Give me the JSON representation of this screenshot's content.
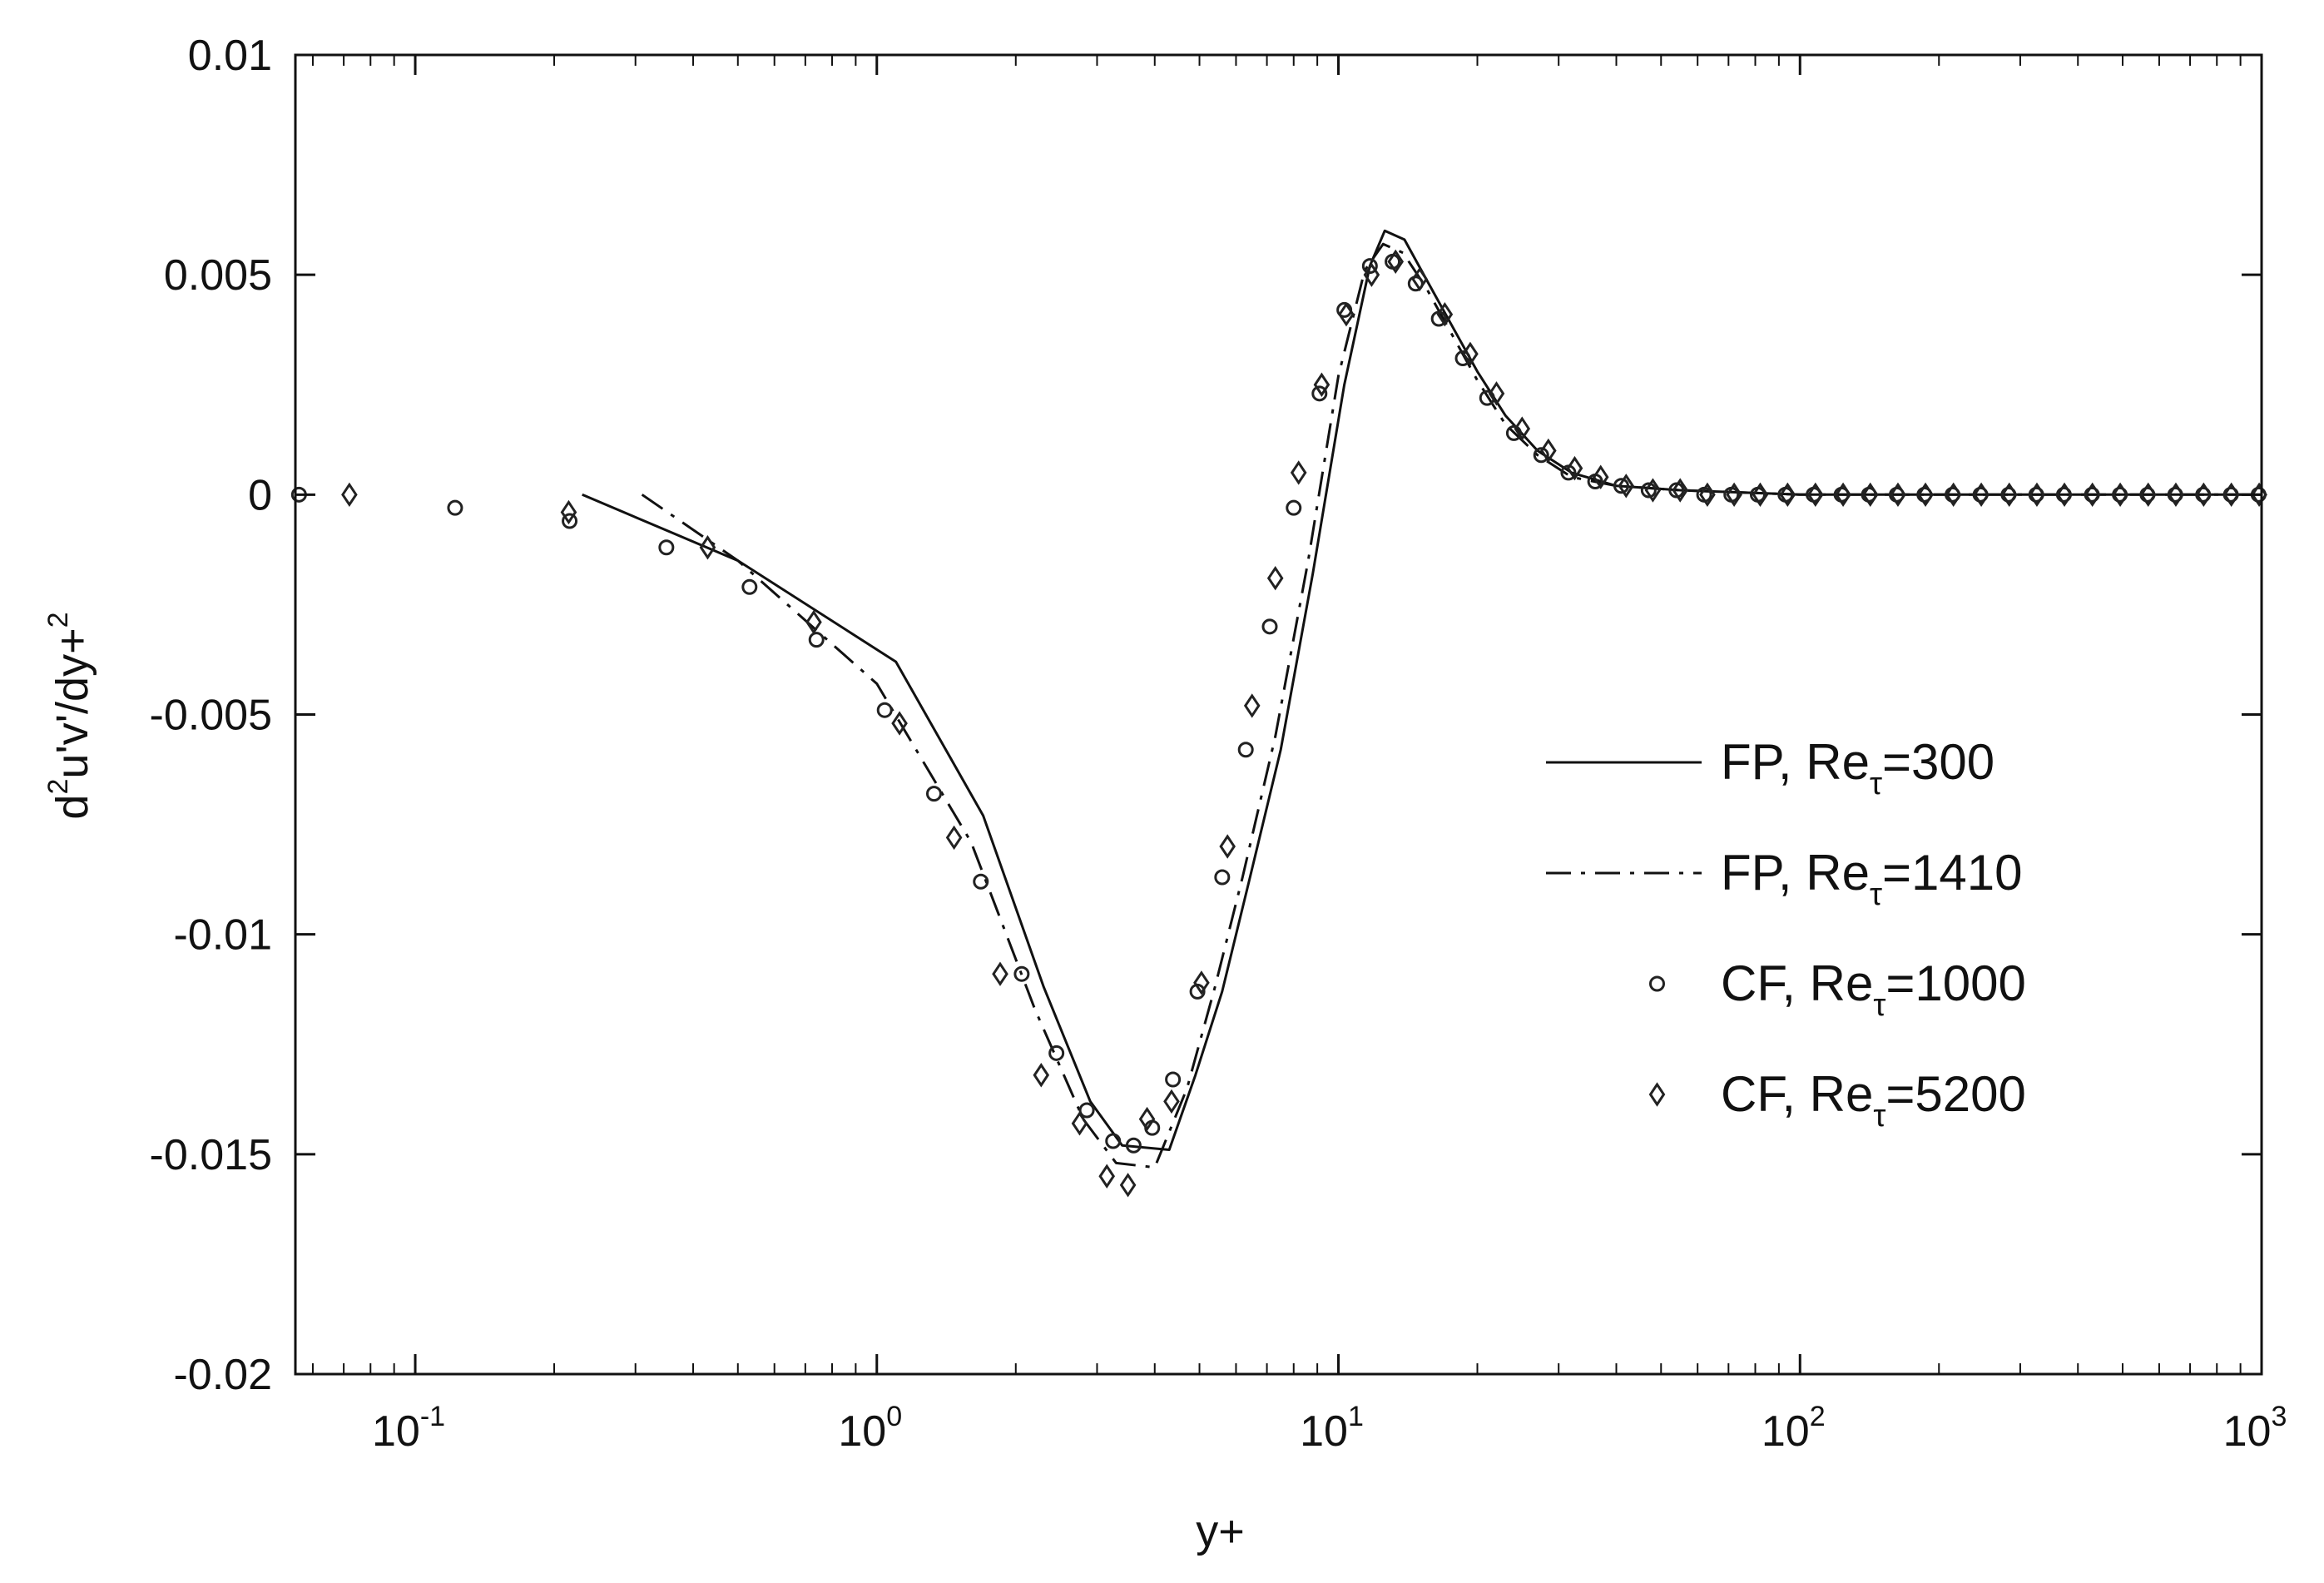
{
  "chart_data": {
    "type": "line",
    "title": "",
    "xlabel": "y+",
    "ylabel": "d2u'v'/dy+2",
    "xscale": "log",
    "xlim": [
      0.055,
      1000
    ],
    "ylim": [
      -0.02,
      0.01
    ],
    "grid": false,
    "legend_position": "center-right",
    "x_ticks": [
      0.1,
      1,
      10,
      100,
      1000
    ],
    "x_tick_labels": [
      {
        "base": "10",
        "exp": "-1"
      },
      {
        "base": "10",
        "exp": "0"
      },
      {
        "base": "10",
        "exp": "1"
      },
      {
        "base": "10",
        "exp": "2"
      },
      {
        "base": "10",
        "exp": "3"
      }
    ],
    "y_ticks": [
      0.01,
      0.005,
      0,
      -0.005,
      -0.01,
      -0.015,
      -0.02
    ],
    "y_tick_labels": [
      "0.01",
      "0.005",
      "0",
      "-0.005",
      "-0.01",
      "-0.015",
      "-0.02"
    ],
    "series": [
      {
        "name": "FP, Re_τ=300",
        "label_main": "FP, Re",
        "label_sub": "τ",
        "label_tail": "=300",
        "style": "solid",
        "x": [
          0.23,
          0.5,
          1.1,
          1.7,
          2.3,
          2.9,
          3.4,
          4.3,
          4.9,
          5.6,
          6.4,
          7.5,
          8.8,
          10.3,
          11.7,
          12.6,
          13.9,
          15.5,
          17.5,
          20,
          23,
          27,
          32,
          40,
          55,
          100,
          200,
          500,
          1000
        ],
        "y": [
          0.0,
          -0.0015,
          -0.0038,
          -0.0073,
          -0.0112,
          -0.0138,
          -0.0148,
          -0.0149,
          -0.0132,
          -0.0113,
          -0.0088,
          -0.0058,
          -0.0018,
          0.0025,
          0.0052,
          0.006,
          0.0058,
          0.0049,
          0.0039,
          0.0028,
          0.0018,
          0.001,
          0.0005,
          0.0002,
          0.0001,
          0.0,
          0.0,
          0.0,
          0.0
        ]
      },
      {
        "name": "FP, Re_τ=1410",
        "label_main": "FP, Re",
        "label_sub": "τ",
        "label_tail": "=1410",
        "style": "dashdot",
        "x": [
          0.31,
          0.5,
          1.0,
          1.6,
          2.2,
          2.8,
          3.3,
          4.0,
          4.7,
          5.4,
          6.2,
          7.3,
          8.6,
          10.0,
          11.4,
          12.5,
          13.8,
          15.5,
          17.5,
          20,
          23,
          27,
          32,
          40,
          55,
          100,
          200,
          500,
          1000
        ],
        "y": [
          0.0,
          -0.0015,
          -0.0043,
          -0.0079,
          -0.0117,
          -0.0142,
          -0.0152,
          -0.0153,
          -0.0135,
          -0.0112,
          -0.0087,
          -0.0055,
          -0.0015,
          0.0027,
          0.0051,
          0.0057,
          0.0055,
          0.0047,
          0.0037,
          0.0026,
          0.0016,
          0.0009,
          0.0004,
          0.0002,
          0.0001,
          0.0,
          0.0,
          0.0,
          0.0
        ]
      },
      {
        "name": "CF, Re_τ=1000",
        "label_main": "CF, Re",
        "label_sub": "τ",
        "label_tail": "=1000",
        "style": "circle",
        "x": [
          0.056,
          0.122,
          0.216,
          0.35,
          0.53,
          0.74,
          1.04,
          1.33,
          1.68,
          2.06,
          2.45,
          2.85,
          3.25,
          3.6,
          3.95,
          4.38,
          4.95,
          5.6,
          6.3,
          7.1,
          8.0,
          9.1,
          10.3,
          11.7,
          13.1,
          14.7,
          16.5,
          18.6,
          21,
          24,
          27.5,
          31.5,
          36,
          41,
          47,
          54,
          62,
          71,
          81,
          93,
          107,
          123,
          141,
          162,
          186,
          214,
          246,
          283,
          325,
          373,
          429,
          493,
          566,
          650,
          747,
          858,
          985
        ],
        "y": [
          0.0,
          -0.0003,
          -0.0006,
          -0.0012,
          -0.0021,
          -0.0033,
          -0.0049,
          -0.0068,
          -0.0088,
          -0.0109,
          -0.0127,
          -0.014,
          -0.0147,
          -0.0148,
          -0.0144,
          -0.0133,
          -0.0113,
          -0.0087,
          -0.0058,
          -0.003,
          -0.0003,
          0.0023,
          0.0042,
          0.0052,
          0.0053,
          0.0048,
          0.004,
          0.0031,
          0.0022,
          0.0014,
          0.0009,
          0.0005,
          0.0003,
          0.0002,
          0.0001,
          0.0001,
          0.0,
          0.0,
          0.0,
          0.0,
          0.0,
          0.0,
          0.0,
          0.0,
          0.0,
          0.0,
          0.0,
          0.0,
          0.0,
          0.0,
          0.0,
          0.0,
          0.0,
          0.0,
          0.0,
          0.0,
          0.0
        ]
      },
      {
        "name": "CF, Re_τ=5200",
        "label_main": "CF, Re",
        "label_sub": "τ",
        "label_tail": "=5200",
        "style": "diamond",
        "x": [
          0.072,
          0.215,
          0.43,
          0.73,
          1.12,
          1.47,
          1.85,
          2.27,
          2.75,
          3.15,
          3.5,
          3.85,
          4.35,
          5.05,
          5.75,
          6.5,
          7.3,
          8.2,
          9.2,
          10.4,
          11.8,
          13.3,
          15,
          17,
          19.3,
          22,
          25,
          28.5,
          32.5,
          37,
          42,
          48,
          55,
          63,
          72,
          82,
          94,
          108,
          124,
          142,
          163,
          187,
          215,
          247,
          284,
          326,
          374,
          430,
          494,
          568,
          652,
          749,
          860,
          988
        ],
        "y": [
          0.0,
          -0.0004,
          -0.0012,
          -0.0029,
          -0.0052,
          -0.0078,
          -0.0109,
          -0.0132,
          -0.0143,
          -0.0155,
          -0.0157,
          -0.0142,
          -0.0138,
          -0.0111,
          -0.008,
          -0.0048,
          -0.0019,
          0.0005,
          0.0025,
          0.0041,
          0.005,
          0.0053,
          0.0049,
          0.0041,
          0.0032,
          0.0023,
          0.0015,
          0.001,
          0.0006,
          0.0004,
          0.0002,
          0.0001,
          0.0001,
          0.0,
          0.0,
          0.0,
          0.0,
          0.0,
          0.0,
          0.0,
          0.0,
          0.0,
          0.0,
          0.0,
          0.0,
          0.0,
          0.0,
          0.0,
          0.0,
          0.0,
          0.0,
          0.0,
          0.0,
          0.0
        ]
      }
    ]
  }
}
